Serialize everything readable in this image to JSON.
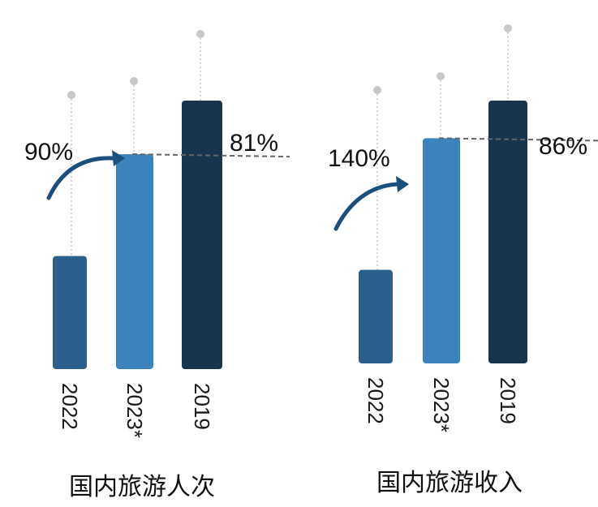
{
  "chart_data": [
    {
      "type": "bar",
      "title": "国内旅游人次",
      "categories": [
        "2022",
        "2023*",
        "2019"
      ],
      "values": [
        25.3,
        48.1,
        60.1
      ],
      "colors": [
        "#2b5f8c",
        "#3a83bd",
        "#17354f"
      ],
      "ylim": [
        0,
        70
      ],
      "growth_label": "90%",
      "ratio_label": "81%",
      "show_reference_line": true,
      "show_markers": true
    },
    {
      "type": "bar",
      "title": "国内旅游收入",
      "categories": [
        "2022",
        "2023*",
        "2019"
      ],
      "values": [
        2.04,
        4.91,
        5.73
      ],
      "colors": [
        "#2b5f8c",
        "#3a83bd",
        "#17354f"
      ],
      "ylim": [
        0,
        7
      ],
      "growth_label": "140%",
      "ratio_label": "86%",
      "show_reference_line": true,
      "show_markers": true
    }
  ],
  "style": {
    "marker_color": "#c8c8c8",
    "reference_line_color": "#666666",
    "arrow_color": "#1b4f7e"
  }
}
